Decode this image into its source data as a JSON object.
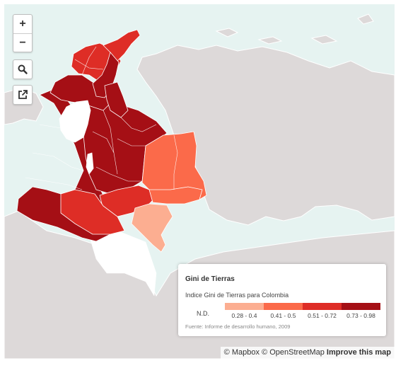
{
  "controls": {
    "zoom_in": "+",
    "zoom_out": "−"
  },
  "icons": {
    "search": "search-icon",
    "share": "share-icon"
  },
  "legend": {
    "title": "Gini de Tierras",
    "description": "Indice Gini de Tierras para Colombia",
    "nd_label": "N.D.",
    "classes": [
      {
        "label": "0.28 - 0.4",
        "color": "#fcae91"
      },
      {
        "label": "0.41 - 0.5",
        "color": "#fb6a4a"
      },
      {
        "label": "0.51 - 0.72",
        "color": "#de2d26"
      },
      {
        "label": "0.73 - 0.98",
        "color": "#a50f15"
      }
    ],
    "source": "Fuente: Informe de desarrollo humano, 2009"
  },
  "attribution": {
    "mapbox": "© Mapbox",
    "osm": "© OpenStreetMap",
    "improve": "Improve this map"
  },
  "colors": {
    "sea": "#e6f3f1",
    "land": "#ddd9d9",
    "no_data": "#ffffff"
  }
}
